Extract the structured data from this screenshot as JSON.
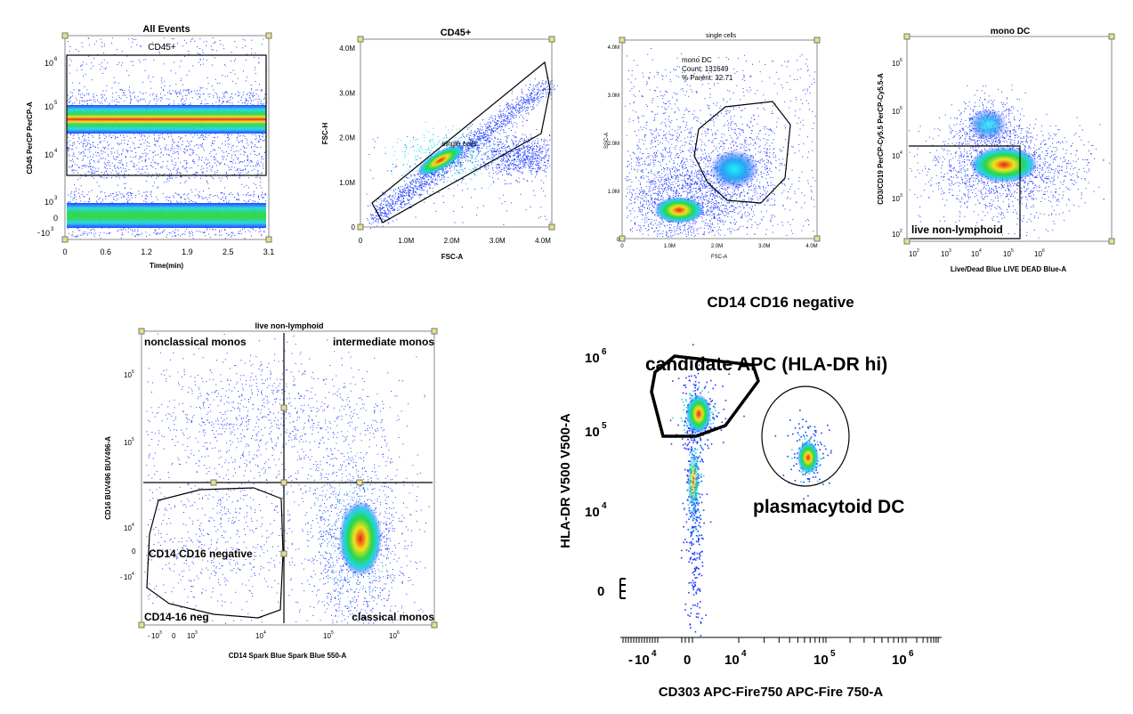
{
  "colors": {
    "low": "#1f3bff",
    "mid_low": "#23d3e8",
    "mid": "#29d64a",
    "mid_high": "#f2e21c",
    "high": "#e8201a",
    "gate": "#000000"
  },
  "chart_data": [
    {
      "id": "p1",
      "type": "scatter",
      "title": "All Events",
      "xlabel": "Time(min)",
      "ylabel": "CD45 PerCP PerCP-A",
      "xticks": [
        "0",
        "0.6",
        "1.2",
        "1.9",
        "2.5",
        "3.1"
      ],
      "yticks": [
        "10^6",
        "10^5",
        "10^4",
        "10^3",
        "0",
        "-10^3"
      ],
      "gates": [
        "CD45+"
      ],
      "populations": [
        {
          "name": "",
          "x_range": [
            0,
            3.1
          ],
          "y_center": "~6x10^4",
          "peak": "high"
        },
        {
          "name": "",
          "x_range": [
            0,
            3.1
          ],
          "y_center": "~0",
          "peak": "mid"
        }
      ]
    },
    {
      "id": "p2",
      "type": "scatter",
      "title": "CD45+",
      "xlabel": "FSC-A",
      "ylabel": "FSC-H",
      "xticks": [
        "0",
        "1.0M",
        "2.0M",
        "3.0M",
        "4.0M"
      ],
      "yticks": [
        "0",
        "1.0M",
        "2.0M",
        "3.0M",
        "4.0M"
      ],
      "gates": [
        "single cells"
      ]
    },
    {
      "id": "p3",
      "type": "scatter",
      "title": "single cells",
      "xlabel": "FSC-A",
      "ylabel": "SSC-A",
      "xticks": [
        "0",
        "1.0M",
        "2.0M",
        "3.0M",
        "4.0M"
      ],
      "yticks": [
        "0",
        "1.0M",
        "2.0M",
        "3.0M",
        "4.0M"
      ],
      "gates": [
        "mono DC"
      ],
      "annotation": [
        "mono DC",
        "Count: 131649",
        "% Parent: 32.71"
      ]
    },
    {
      "id": "p4",
      "type": "scatter",
      "title": "mono DC",
      "xlabel": "Live/Dead Blue LIVE DEAD Blue-A",
      "ylabel": "CD3/CD19 PerCP-Cy5.5 PerCP-Cy5.5-A",
      "xticks": [
        "10^2",
        "10^3",
        "10^4",
        "10^5",
        "10^6"
      ],
      "yticks": [
        "10^6",
        "10^5",
        "10^4",
        "10^3",
        "10^2"
      ],
      "gates": [
        "live non-lymphoid"
      ]
    },
    {
      "id": "p5",
      "type": "scatter",
      "title": "live non-lymphoid",
      "xlabel": "CD14 Spark Blue Spark Blue 550-A",
      "ylabel": "CD16 BUV496 BUV496-A",
      "xticks": [
        "-10^3",
        "0",
        "10^3",
        "10^4",
        "10^5",
        "10^6"
      ],
      "yticks": [
        "10^6",
        "10^5",
        "10^4",
        "0",
        "-10^4"
      ],
      "gates": [
        "nonclassical monos",
        "intermediate monos",
        "CD14 CD16 negative",
        "CD14-16 neg",
        "classical monos"
      ]
    },
    {
      "id": "p6",
      "type": "scatter",
      "title": "CD14 CD16 negative",
      "xlabel": "CD303 APC-Fire750 APC-Fire 750-A",
      "ylabel": "HLA-DR V500 V500-A",
      "xticks": [
        "-10^4",
        "0",
        "10^4",
        "10^5",
        "10^6"
      ],
      "yticks": [
        "10^6",
        "10^5",
        "10^4",
        "0"
      ],
      "gates": [
        "candidate APC (HLA-DR hi)",
        "plasmacytoid DC"
      ]
    }
  ],
  "labels": {
    "p1": {
      "title": "All Events",
      "gate": "CD45+",
      "x": "Time(min)",
      "y": "CD45 PerCP PerCP-A",
      "xt": [
        "0",
        "0.6",
        "1.2",
        "1.9",
        "2.5",
        "3.1"
      ],
      "yt0": "0",
      "base": "10"
    },
    "p2": {
      "title": "CD45+",
      "gate": "single cells",
      "x": "FSC-A",
      "y": "FSC-H",
      "xt": [
        "0",
        "1.0M",
        "2.0M",
        "3.0M",
        "4.0M"
      ],
      "yt": [
        "4.0M",
        "3.0M",
        "2.0M",
        "1.0M",
        "0"
      ]
    },
    "p3": {
      "title": "single cells",
      "x": "FSC-A",
      "y": "SSC-A",
      "xt": [
        "0",
        "1.0M",
        "2.0M",
        "3.0M",
        "4.0M"
      ],
      "yt": [
        "4.0M",
        "3.0M",
        "2.0M",
        "1.0M",
        "0"
      ],
      "ann1": "mono DC",
      "ann2": "Count: 131649",
      "ann3": "% Parent: 32.71"
    },
    "p4": {
      "title": "mono DC",
      "gate": "live non-lymphoid",
      "x": "Live/Dead Blue LIVE DEAD Blue-A",
      "y": "CD3/CD19 PerCP-Cy5.5 PerCP-Cy5.5-A",
      "base": "10"
    },
    "p5": {
      "title": "live non-lymphoid",
      "g1": "nonclassical monos",
      "g2": "intermediate monos",
      "g3": "CD14 CD16 negative",
      "g4": "CD14-16 neg",
      "g5": "classical monos",
      "x": "CD14 Spark Blue Spark Blue 550-A",
      "y": "CD16 BUV496 BUV496-A",
      "zero": "0",
      "base": "10"
    },
    "p6": {
      "title": "CD14 CD16 negative",
      "g1": "candidate APC (HLA-DR hi)",
      "g2": "plasmacytoid DC",
      "x": "CD303 APC-Fire750 APC-Fire 750-A",
      "y": "HLA-DR V500 V500-A",
      "zero": "0",
      "base": "10"
    }
  }
}
